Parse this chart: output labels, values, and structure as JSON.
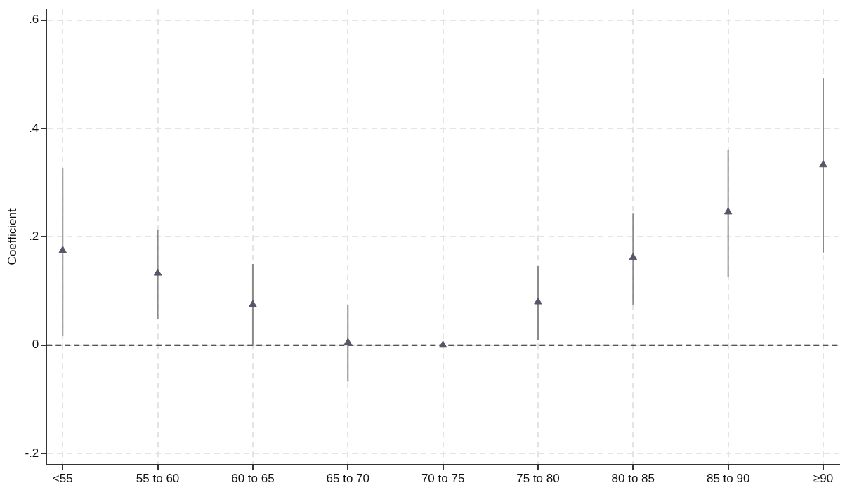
{
  "chart_data": {
    "type": "scatter",
    "ylabel": "Coefficient",
    "categories": [
      "<55",
      "55 to 60",
      "60 to 65",
      "65 to 70",
      "70 to 75",
      "75 to 80",
      "80 to 85",
      "85 to 90",
      "≥90"
    ],
    "series": [
      {
        "color": "#5b5468",
        "values": [
          0.175,
          0.133,
          0.075,
          0.005,
          0,
          0.08,
          0.162,
          0.246,
          0.333
        ],
        "errors": [
          [
            0.018,
            0.326
          ],
          [
            0.049,
            0.213
          ],
          [
            0.0,
            0.15
          ],
          [
            -0.067,
            0.074
          ],
          null,
          [
            0.009,
            0.146
          ],
          [
            0.075,
            0.243
          ],
          [
            0.126,
            0.36
          ],
          [
            0.171,
            0.493
          ]
        ]
      }
    ],
    "ylim": [
      -0.22,
      0.62
    ],
    "yticks": [
      {
        "value": -0.2,
        "label": "-.2"
      },
      0,
      {
        "value": 0.2,
        "label": ".2"
      },
      {
        "value": 0.4,
        "label": ".4"
      },
      {
        "value": 0.6,
        "label": ".6"
      }
    ],
    "ref_lines": [
      {
        "axis": "y",
        "value": 0,
        "color": "#222222",
        "line_style": "dashed"
      }
    ],
    "grid": true,
    "legend": false,
    "marker": "triangle"
  }
}
